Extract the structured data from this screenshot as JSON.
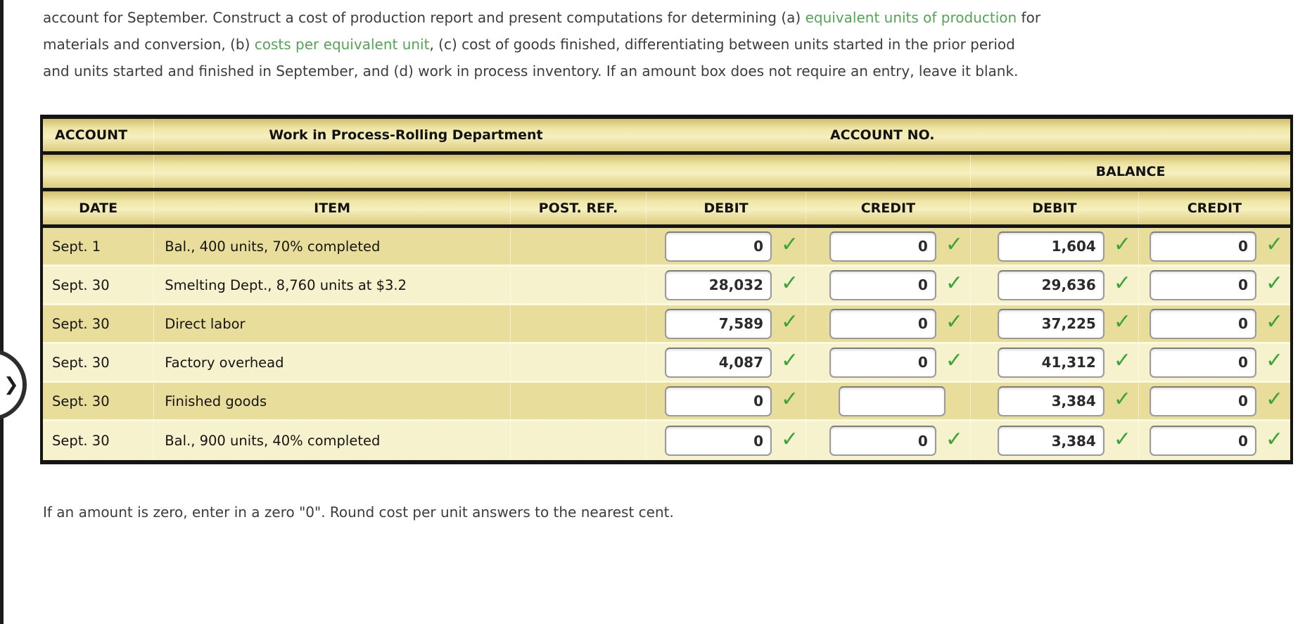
{
  "page": {
    "nav_arrow_glyph": "❯",
    "footer_note": "If an amount is zero, enter in a zero \"0\". Round cost per unit answers to the nearest cent."
  },
  "intro_paragraph": {
    "lines": [
      [
        {
          "text": "account for September. Construct a cost of production report and present computations for determining (a) "
        },
        {
          "text": "equivalent units of production",
          "link": true
        },
        {
          "text": " for"
        }
      ],
      [
        {
          "text": "materials and conversion, (b) "
        },
        {
          "text": "costs per equivalent unit",
          "link": true
        },
        {
          "text": ", (c) cost of goods finished, differentiating between units started in the prior period"
        }
      ],
      [
        {
          "text": "and units started and finished in September, and (d) work in process inventory. If an amount box does not require an entry, leave it blank."
        }
      ]
    ]
  },
  "ledger": {
    "account_label": "ACCOUNT",
    "account_name": "Work in Process-Rolling Department",
    "account_no_label": "ACCOUNT NO.",
    "balance_label": "BALANCE",
    "columns": [
      "DATE",
      "ITEM",
      "POST. REF.",
      "DEBIT",
      "CREDIT",
      "DEBIT",
      "CREDIT"
    ],
    "check_icon": "✓",
    "colors": {
      "check_green": "#3aa33a",
      "link_green": "#55a455"
    },
    "rows": [
      {
        "date": "Sept. 1",
        "item": "Bal., 400 units, 70% completed",
        "post_ref": "",
        "debit": {
          "value": "0",
          "checked": true
        },
        "credit": {
          "value": "0",
          "checked": true
        },
        "balance_debit": {
          "value": "1,604",
          "checked": true
        },
        "balance_credit": {
          "value": "0",
          "checked": true
        }
      },
      {
        "date": "Sept. 30",
        "item": "Smelting Dept., 8,760 units at $3.2",
        "post_ref": "",
        "debit": {
          "value": "28,032",
          "checked": true
        },
        "credit": {
          "value": "0",
          "checked": true
        },
        "balance_debit": {
          "value": "29,636",
          "checked": true
        },
        "balance_credit": {
          "value": "0",
          "checked": true
        }
      },
      {
        "date": "Sept. 30",
        "item": "Direct labor",
        "post_ref": "",
        "debit": {
          "value": "7,589",
          "checked": true
        },
        "credit": {
          "value": "0",
          "checked": true
        },
        "balance_debit": {
          "value": "37,225",
          "checked": true
        },
        "balance_credit": {
          "value": "0",
          "checked": true
        }
      },
      {
        "date": "Sept. 30",
        "item": "Factory overhead",
        "post_ref": "",
        "debit": {
          "value": "4,087",
          "checked": true
        },
        "credit": {
          "value": "0",
          "checked": true
        },
        "balance_debit": {
          "value": "41,312",
          "checked": true
        },
        "balance_credit": {
          "value": "0",
          "checked": true
        }
      },
      {
        "date": "Sept. 30",
        "item": "Finished goods",
        "post_ref": "",
        "debit": {
          "value": "0",
          "checked": true
        },
        "credit": {
          "value": "",
          "checked": false
        },
        "balance_debit": {
          "value": "3,384",
          "checked": true
        },
        "balance_credit": {
          "value": "0",
          "checked": true
        }
      },
      {
        "date": "Sept. 30",
        "item": "Bal., 900 units, 40% completed",
        "post_ref": "",
        "debit": {
          "value": "0",
          "checked": true
        },
        "credit": {
          "value": "0",
          "checked": true
        },
        "balance_debit": {
          "value": "3,384",
          "checked": true
        },
        "balance_credit": {
          "value": "0",
          "checked": true
        }
      }
    ]
  }
}
